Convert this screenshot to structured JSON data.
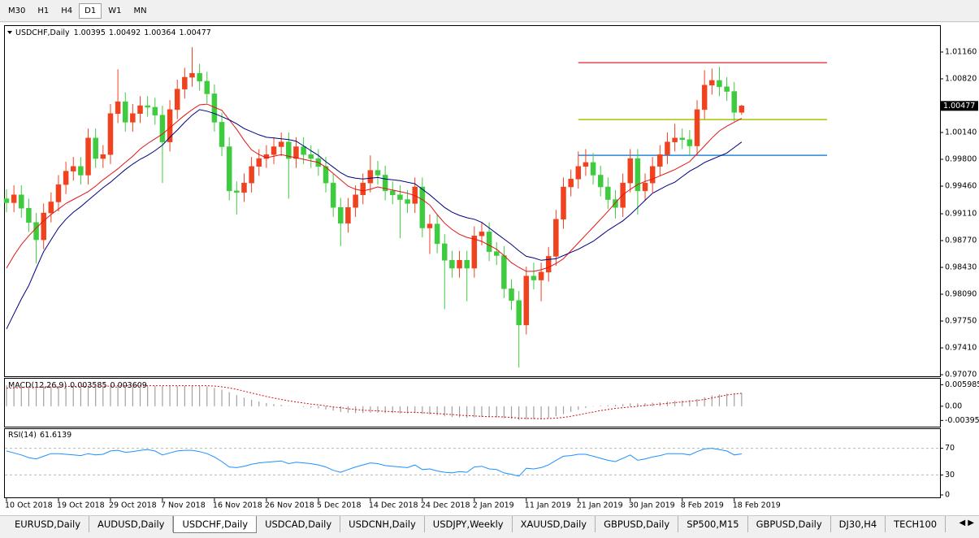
{
  "toolbar": {
    "timeframes": [
      "M30",
      "H1",
      "H4",
      "D1",
      "W1",
      "MN"
    ],
    "active": 3
  },
  "chart_data": [
    {
      "type": "candlestick",
      "title": "USDCHF,Daily",
      "ohlc_labels": [
        "1.00395",
        "1.00492",
        "1.00364",
        "1.00477"
      ],
      "last_price_label": "1.00477",
      "up_color": "#f0421e",
      "down_color": "#3fcb3f",
      "categories": [
        "10 Oct 2018",
        null,
        null,
        null,
        null,
        null,
        null,
        "19 Oct 2018",
        null,
        null,
        null,
        null,
        null,
        null,
        "29 Oct 2018",
        null,
        null,
        null,
        null,
        null,
        null,
        "7 Nov 2018",
        null,
        null,
        null,
        null,
        null,
        null,
        "16 Nov 2018",
        null,
        null,
        null,
        null,
        null,
        null,
        "26 Nov 2018",
        null,
        null,
        null,
        null,
        null,
        null,
        "5 Dec 2018",
        null,
        null,
        null,
        null,
        null,
        null,
        "14 Dec 2018",
        null,
        null,
        null,
        null,
        null,
        null,
        "24 Dec 2018",
        null,
        null,
        null,
        null,
        null,
        null,
        "2 Jan 2019",
        null,
        null,
        null,
        null,
        null,
        null,
        "11 Jan 2019",
        null,
        null,
        null,
        null,
        null,
        null,
        "21 Jan 2019",
        null,
        null,
        null,
        null,
        null,
        null,
        "30 Jan 2019",
        null,
        null,
        null,
        null,
        null,
        null,
        "8 Feb 2019",
        null,
        null,
        null,
        null,
        null,
        null,
        "18 Feb 2019",
        null
      ],
      "open": [
        0.993,
        0.9925,
        0.9935,
        0.9918,
        0.99,
        0.9878,
        0.9912,
        0.9926,
        0.9948,
        0.9965,
        0.9971,
        0.996,
        1.0007,
        0.9981,
        0.9986,
        1.0038,
        1.0053,
        1.0027,
        1.0038,
        1.0048,
        1.0046,
        1.0036,
        1.0002,
        1.0043,
        1.0069,
        1.0084,
        1.0089,
        1.0079,
        1.0063,
        1.0027,
        0.9996,
        0.994,
        0.9938,
        0.995,
        0.9971,
        0.9981,
        0.9986,
        0.9996,
        1.0002,
        0.9981,
        0.9996,
        0.9986,
        0.9981,
        0.9971,
        0.995,
        0.9919,
        0.9899,
        0.9919,
        0.9935,
        0.995,
        0.9966,
        0.996,
        0.994,
        0.9935,
        0.9929,
        0.9924,
        0.9945,
        0.9893,
        0.9898,
        0.9873,
        0.9852,
        0.9842,
        0.9852,
        0.9842,
        0.9883,
        0.9888,
        0.9863,
        0.9858,
        0.9816,
        0.9801,
        0.977,
        0.9832,
        0.9827,
        0.9837,
        0.9857,
        0.9904,
        0.9945,
        0.9955,
        0.9971,
        0.9976,
        0.996,
        0.9945,
        0.9929,
        0.9919,
        0.995,
        0.9981,
        0.994,
        0.995,
        0.9971,
        0.9986,
        1.0002,
        1.0007,
        1.0005,
        0.9997,
        1.0043,
        1.0074,
        1.008,
        1.0072,
        1.0066,
        1.00395
      ],
      "high": [
        0.9942,
        0.9947,
        0.9947,
        0.993,
        0.9912,
        0.9924,
        0.9938,
        0.996,
        0.9977,
        0.9983,
        0.9983,
        1.0019,
        1.0019,
        0.9998,
        1.005,
        1.0094,
        1.0065,
        1.005,
        1.006,
        1.006,
        1.0058,
        1.0048,
        1.0055,
        1.0081,
        1.0096,
        1.0122,
        1.0101,
        1.0091,
        1.0075,
        1.0039,
        1.0008,
        0.9952,
        0.9962,
        0.9983,
        0.9993,
        0.9998,
        1.0008,
        1.0014,
        1.0014,
        1.0008,
        1.0008,
        0.9998,
        0.9993,
        0.9983,
        0.9962,
        0.9931,
        0.9931,
        0.9947,
        0.9962,
        0.9985,
        0.9978,
        0.9972,
        0.9952,
        0.9947,
        0.9941,
        0.9957,
        0.9957,
        0.991,
        0.991,
        0.9885,
        0.9864,
        0.9864,
        0.9864,
        0.9895,
        0.99,
        0.99,
        0.9875,
        0.987,
        0.9828,
        0.9813,
        0.9844,
        0.9849,
        0.9849,
        0.9869,
        0.9916,
        0.9957,
        0.9967,
        0.999,
        0.9993,
        0.9988,
        0.9972,
        0.9957,
        0.9941,
        0.9962,
        0.9993,
        0.9993,
        0.9962,
        0.9983,
        0.9998,
        1.0014,
        1.0025,
        1.0019,
        1.0017,
        1.0055,
        1.0093,
        1.0095,
        1.0097,
        1.0084,
        1.0078,
        1.00492
      ],
      "low": [
        0.9913,
        0.9913,
        0.9906,
        0.9888,
        0.9848,
        0.9866,
        0.99,
        0.9914,
        0.9936,
        0.9953,
        0.9948,
        0.9948,
        0.9969,
        0.9969,
        0.9974,
        1.0026,
        1.0015,
        1.0015,
        1.0026,
        1.0034,
        1.0024,
        0.995,
        0.999,
        1.0031,
        1.0057,
        1.0072,
        1.0067,
        1.0051,
        1.0015,
        0.9984,
        0.9928,
        0.991,
        0.9926,
        0.9938,
        0.9959,
        0.9969,
        0.9974,
        0.9984,
        0.993,
        0.9969,
        0.9974,
        0.9969,
        0.9959,
        0.9938,
        0.9907,
        0.987,
        0.9887,
        0.9907,
        0.9923,
        0.9938,
        0.9948,
        0.9928,
        0.9923,
        0.988,
        0.9912,
        0.9912,
        0.9881,
        0.986,
        0.9861,
        0.979,
        0.983,
        0.983,
        0.98,
        0.983,
        0.9871,
        0.9851,
        0.9846,
        0.9804,
        0.9789,
        0.9716,
        0.9758,
        0.9815,
        0.98,
        0.9825,
        0.9845,
        0.9892,
        0.9933,
        0.9943,
        0.9959,
        0.9948,
        0.9933,
        0.9917,
        0.9905,
        0.9907,
        0.9938,
        0.991,
        0.9928,
        0.9938,
        0.9959,
        0.9974,
        0.999,
        0.9993,
        0.9985,
        0.9985,
        1.0031,
        1.0062,
        1.006,
        1.0054,
        1.0028,
        1.00364
      ],
      "close": [
        0.9925,
        0.9935,
        0.9918,
        0.99,
        0.9878,
        0.9912,
        0.9926,
        0.9948,
        0.9965,
        0.9971,
        0.996,
        1.0007,
        0.9981,
        0.9986,
        1.0038,
        1.0053,
        1.0027,
        1.0038,
        1.0048,
        1.0046,
        1.0036,
        1.0002,
        1.0043,
        1.0069,
        1.0084,
        1.0089,
        1.0079,
        1.0063,
        1.0027,
        0.9996,
        0.994,
        0.9938,
        0.995,
        0.9971,
        0.9981,
        0.9986,
        0.9996,
        1.0002,
        0.9981,
        0.9996,
        0.9986,
        0.9981,
        0.9971,
        0.995,
        0.9919,
        0.9899,
        0.9919,
        0.9935,
        0.995,
        0.9966,
        0.996,
        0.994,
        0.9935,
        0.9929,
        0.9924,
        0.9945,
        0.9893,
        0.9898,
        0.9873,
        0.9852,
        0.9842,
        0.9852,
        0.9842,
        0.9883,
        0.9888,
        0.9863,
        0.9858,
        0.9816,
        0.9801,
        0.977,
        0.9832,
        0.9827,
        0.9837,
        0.9857,
        0.9904,
        0.9945,
        0.9955,
        0.9971,
        0.9976,
        0.996,
        0.9945,
        0.9929,
        0.9919,
        0.995,
        0.9981,
        0.994,
        0.995,
        0.9971,
        0.9986,
        1.0002,
        1.0007,
        1.0005,
        0.9997,
        1.0043,
        1.0074,
        1.008,
        1.0072,
        1.0066,
        1.00395,
        1.00477
      ],
      "series": [
        {
          "color": "#e31414",
          "values": [
            0.9842,
            0.9858,
            0.9872,
            0.9883,
            0.9893,
            0.9902,
            0.991,
            0.9917,
            0.9924,
            0.9929,
            0.9934,
            0.9939,
            0.9946,
            0.9954,
            0.9961,
            0.9968,
            0.9976,
            0.9984,
            0.9993,
            1.0,
            1.0006,
            1.0012,
            1.002,
            1.0028,
            1.0036,
            1.0043,
            1.0049,
            1.005,
            1.0046,
            1.0042,
            1.003,
            1.0018,
            1.0004,
            0.9992,
            0.9986,
            0.9982,
            0.9984,
            0.9986,
            0.9984,
            0.9982,
            0.998,
            0.9978,
            0.9976,
            0.997,
            0.9962,
            0.9954,
            0.9946,
            0.9942,
            0.994,
            0.9942,
            0.9945,
            0.9943,
            0.9941,
            0.9939,
            0.9937,
            0.9934,
            0.9929,
            0.9922,
            0.991,
            0.9899,
            0.9891,
            0.9885,
            0.9881,
            0.9879,
            0.9876,
            0.9871,
            0.9866,
            0.9858,
            0.9849,
            0.9843,
            0.9838,
            0.9838,
            0.984,
            0.9843,
            0.9848,
            0.9854,
            0.9864,
            0.9874,
            0.9884,
            0.9894,
            0.9904,
            0.9914,
            0.9925,
            0.9935,
            0.9942,
            0.9948,
            0.9952,
            0.9955,
            0.9959,
            0.9963,
            0.9967,
            0.9972,
            0.9977,
            0.9987,
            0.9997,
            1.0007,
            1.0016,
            1.0022,
            1.0027,
            1.0032
          ]
        },
        {
          "color": "#000080",
          "values": [
            0.9765,
            0.9784,
            0.9803,
            0.982,
            0.9842,
            0.9863,
            0.9878,
            0.9893,
            0.9904,
            0.9913,
            0.992,
            0.9928,
            0.9936,
            0.9944,
            0.9951,
            0.9959,
            0.9967,
            0.9974,
            0.998,
            0.9985,
            0.9991,
            0.9998,
            1.0008,
            1.0017,
            1.0027,
            1.0036,
            1.0043,
            1.0041,
            1.0038,
            1.0034,
            1.003,
            1.0025,
            1.0019,
            1.0015,
            1.0011,
            1.0008,
            1.0007,
            1.0006,
            1.0005,
            1.0003,
            0.9997,
            0.9991,
            0.9985,
            0.9977,
            0.997,
            0.9963,
            0.9958,
            0.9956,
            0.9955,
            0.9956,
            0.9957,
            0.9955,
            0.9954,
            0.9953,
            0.9951,
            0.9949,
            0.9942,
            0.9935,
            0.9927,
            0.9919,
            0.9913,
            0.9909,
            0.9906,
            0.9904,
            0.99,
            0.9893,
            0.9886,
            0.9879,
            0.9872,
            0.9864,
            0.9857,
            0.9855,
            0.9852,
            0.9853,
            0.9854,
            0.9858,
            0.9862,
            0.9866,
            0.9871,
            0.9876,
            0.9883,
            0.989,
            0.9896,
            0.9902,
            0.991,
            0.9919,
            0.9928,
            0.9937,
            0.9942,
            0.9947,
            0.9951,
            0.9958,
            0.9965,
            0.997,
            0.9976,
            0.998,
            0.9984,
            0.9988,
            0.9995,
            1.0002
          ]
        }
      ],
      "levels": [
        {
          "value": 1.01025,
          "color": "#e04848"
        },
        {
          "value": 1.00304,
          "color": "#a8c400"
        },
        {
          "value": 0.99851,
          "color": "#2f86d6"
        }
      ],
      "ylim": [
        0.9705,
        1.015
      ],
      "yticks": [
        {
          "value": 1.0116,
          "label": "1.01160"
        },
        {
          "value": 1.0082,
          "label": "1.00820"
        },
        {
          "value": 1.0014,
          "label": "1.00140"
        },
        {
          "value": 0.998,
          "label": "0.99800"
        },
        {
          "value": 0.9946,
          "label": "0.99460"
        },
        {
          "value": 0.9911,
          "label": "0.99110"
        },
        {
          "value": 0.9877,
          "label": "0.98770"
        },
        {
          "value": 0.9843,
          "label": "0.98430"
        },
        {
          "value": 0.9809,
          "label": "0.98090"
        },
        {
          "value": 0.9775,
          "label": "0.97750"
        },
        {
          "value": 0.9741,
          "label": "0.97410"
        },
        {
          "value": 0.9707,
          "label": "0.97070"
        }
      ]
    },
    {
      "type": "macd",
      "title": "MACD(12,26,9)",
      "last_labels": [
        "0.003585",
        "0.003609"
      ],
      "hist_color": "#a0a0a0",
      "signal_color": "#d01010",
      "values": [
        0.0058,
        0.0058,
        0.0057,
        0.0056,
        0.0055,
        0.0055,
        0.0055,
        0.0055,
        0.0056,
        0.0056,
        0.0056,
        0.0057,
        0.0057,
        0.0057,
        0.0058,
        0.0058,
        0.0058,
        0.0058,
        0.0058,
        0.0058,
        0.0057,
        0.0056,
        0.0056,
        0.0056,
        0.0057,
        0.0058,
        0.0057,
        0.0055,
        0.0051,
        0.0046,
        0.0039,
        0.0031,
        0.0024,
        0.0018,
        0.0013,
        0.0009,
        0.0006,
        0.0004,
        0.0001,
        0.0,
        -0.0002,
        -0.0004,
        -0.0006,
        -0.0009,
        -0.0012,
        -0.0016,
        -0.0018,
        -0.0019,
        -0.0019,
        -0.0018,
        -0.0018,
        -0.0019,
        -0.0019,
        -0.002,
        -0.002,
        -0.0019,
        -0.0021,
        -0.0023,
        -0.0025,
        -0.0028,
        -0.003,
        -0.0031,
        -0.0032,
        -0.0031,
        -0.003,
        -0.003,
        -0.0031,
        -0.0033,
        -0.0035,
        -0.0038,
        -0.0037,
        -0.0036,
        -0.0035,
        -0.0033,
        -0.0028,
        -0.0022,
        -0.0016,
        -0.001,
        -0.0005,
        -0.0001,
        0.0002,
        0.0003,
        0.0004,
        0.0006,
        0.0008,
        0.0008,
        0.0009,
        0.001,
        0.0011,
        0.0013,
        0.0015,
        0.0016,
        0.0017,
        0.002,
        0.0025,
        0.003,
        0.0033,
        0.0035,
        0.0036,
        0.003585
      ],
      "signal": [
        0.005,
        0.0051,
        0.0052,
        0.0053,
        0.0053,
        0.0054,
        0.0054,
        0.0054,
        0.0055,
        0.0055,
        0.0055,
        0.0055,
        0.0056,
        0.0056,
        0.0056,
        0.0057,
        0.0057,
        0.0057,
        0.0057,
        0.0057,
        0.0057,
        0.0057,
        0.0057,
        0.0057,
        0.0057,
        0.0057,
        0.0057,
        0.0057,
        0.0056,
        0.0054,
        0.0051,
        0.0047,
        0.0042,
        0.0037,
        0.0032,
        0.0027,
        0.0023,
        0.0019,
        0.0015,
        0.0012,
        0.0009,
        0.0006,
        0.0004,
        0.0001,
        -0.0002,
        -0.0004,
        -0.0007,
        -0.0009,
        -0.0011,
        -0.0012,
        -0.0013,
        -0.0014,
        -0.0015,
        -0.0016,
        -0.0017,
        -0.0017,
        -0.0018,
        -0.0019,
        -0.002,
        -0.0022,
        -0.0023,
        -0.0025,
        -0.0026,
        -0.0027,
        -0.0028,
        -0.0029,
        -0.0029,
        -0.003,
        -0.0031,
        -0.0033,
        -0.0034,
        -0.0034,
        -0.0035,
        -0.0034,
        -0.0033,
        -0.0031,
        -0.0028,
        -0.0024,
        -0.002,
        -0.0016,
        -0.0012,
        -0.0009,
        -0.0006,
        -0.0004,
        -0.0002,
        0.0,
        0.0002,
        0.0004,
        0.0006,
        0.0008,
        0.001,
        0.0012,
        0.0014,
        0.0016,
        0.0019,
        0.0023,
        0.0027,
        0.0031,
        0.0034,
        0.003609
      ],
      "ylim": [
        -0.005,
        0.0072
      ],
      "yticks": [
        0.005985,
        {
          "value": 0,
          "label": "0.00"
        },
        -0.003954
      ]
    },
    {
      "type": "line",
      "title": "RSI(14)",
      "last_label": "61.6139",
      "color": "#1e90ff",
      "values": [
        66,
        63,
        60,
        56,
        54,
        58,
        62,
        62,
        61,
        60,
        59,
        62,
        60,
        61,
        66,
        67,
        64,
        65,
        67,
        68,
        66,
        60,
        63,
        66,
        67,
        67,
        65,
        62,
        57,
        50,
        42,
        41,
        43,
        46,
        48,
        49,
        50,
        51,
        47,
        49,
        48,
        47,
        45,
        42,
        37,
        34,
        38,
        42,
        45,
        48,
        47,
        44,
        43,
        42,
        41,
        45,
        38,
        39,
        36,
        34,
        33,
        35,
        34,
        42,
        43,
        39,
        38,
        33,
        31,
        28,
        40,
        39,
        41,
        45,
        52,
        58,
        59,
        61,
        61,
        58,
        55,
        52,
        50,
        55,
        60,
        52,
        54,
        57,
        59,
        62,
        62,
        62,
        60,
        65,
        69,
        70,
        68,
        66,
        60,
        61.6139
      ],
      "ylim": [
        0,
        100
      ],
      "yticks": [
        70,
        30,
        0
      ]
    }
  ],
  "tabs": {
    "items": [
      "EURUSD,Daily",
      "AUDUSD,Daily",
      "USDCHF,Daily",
      "USDCAD,Daily",
      "USDCNH,Daily",
      "USDJPY,Weekly",
      "XAUUSD,Daily",
      "GBPUSD,Daily",
      "SP500,M15",
      "GBPUSD,Daily",
      "DJ30,H4",
      "TECH100"
    ],
    "active": 2
  }
}
